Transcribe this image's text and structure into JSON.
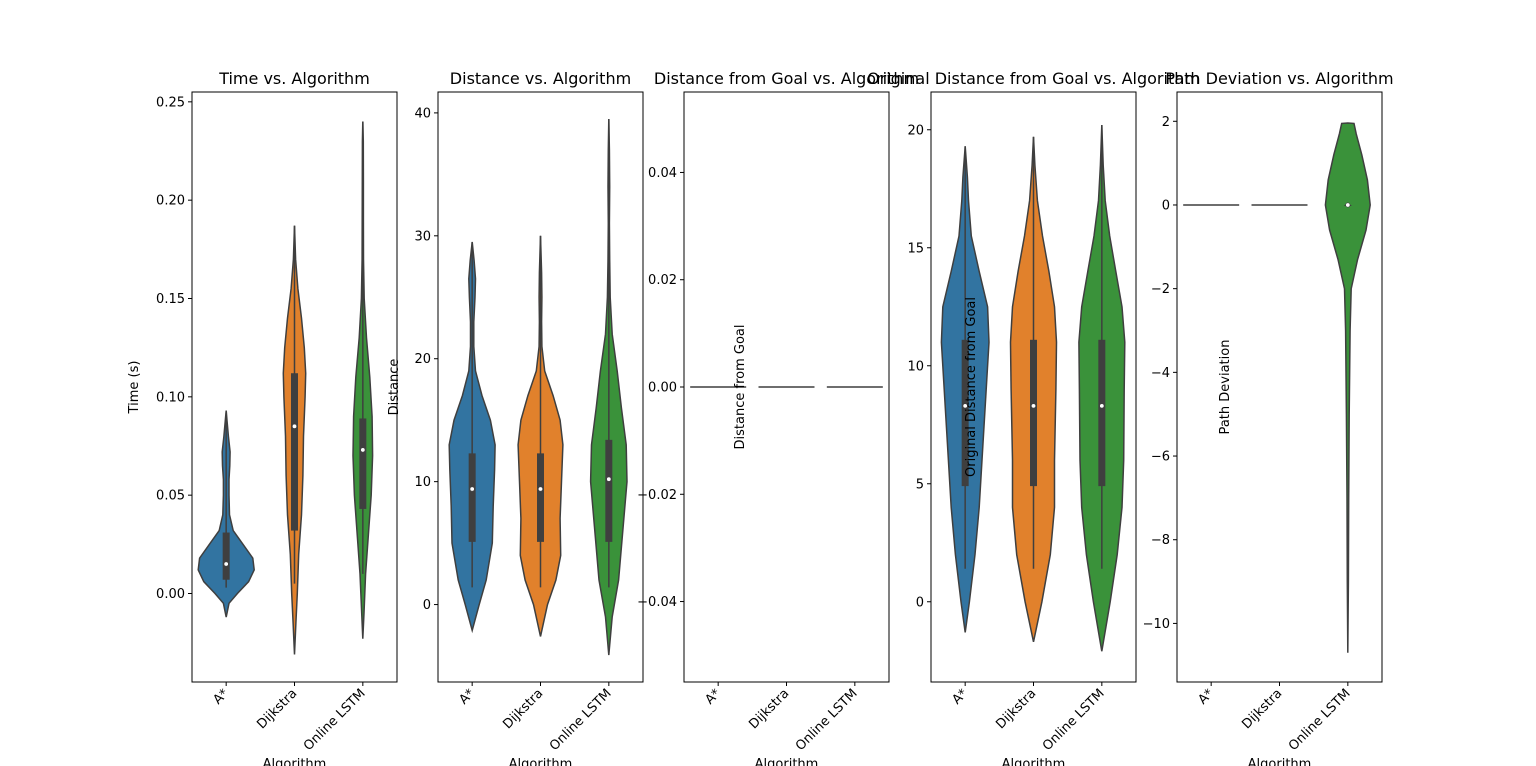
{
  "chart_data": [
    {
      "type": "violin",
      "title": "Time vs. Algorithm",
      "xlabel": "Algorithm",
      "ylabel": "Time (s)",
      "categories": [
        "A*",
        "Dijkstra",
        "Online LSTM"
      ],
      "colors": [
        "#3274a1",
        "#e1812c",
        "#3a923a"
      ],
      "ylim": [
        -0.045,
        0.255
      ],
      "yticks": [
        0.0,
        0.05,
        0.1,
        0.15,
        0.2,
        0.25
      ],
      "ytick_labels": [
        "0.00",
        "0.05",
        "0.10",
        "0.15",
        "0.20",
        "0.25"
      ],
      "violins": [
        {
          "name": "A*",
          "min": 0.003,
          "q1": 0.007,
          "median": 0.015,
          "q3": 0.031,
          "max": 0.092,
          "profile": [
            [
              -0.012,
              0
            ],
            [
              -0.005,
              0.1
            ],
            [
              0.0,
              0.4
            ],
            [
              0.006,
              0.8
            ],
            [
              0.012,
              1.0
            ],
            [
              0.018,
              0.95
            ],
            [
              0.025,
              0.6
            ],
            [
              0.032,
              0.25
            ],
            [
              0.04,
              0.12
            ],
            [
              0.05,
              0.1
            ],
            [
              0.058,
              0.1
            ],
            [
              0.065,
              0.13
            ],
            [
              0.072,
              0.14
            ],
            [
              0.08,
              0.08
            ],
            [
              0.088,
              0.03
            ],
            [
              0.093,
              0
            ]
          ]
        },
        {
          "name": "Dijkstra",
          "min": 0.005,
          "q1": 0.032,
          "median": 0.085,
          "q3": 0.112,
          "max": 0.187,
          "profile": [
            [
              -0.031,
              0
            ],
            [
              -0.015,
              0.05
            ],
            [
              0.0,
              0.1
            ],
            [
              0.02,
              0.15
            ],
            [
              0.04,
              0.25
            ],
            [
              0.06,
              0.3
            ],
            [
              0.08,
              0.32
            ],
            [
              0.1,
              0.38
            ],
            [
              0.112,
              0.4
            ],
            [
              0.125,
              0.35
            ],
            [
              0.14,
              0.25
            ],
            [
              0.155,
              0.12
            ],
            [
              0.17,
              0.04
            ],
            [
              0.187,
              0
            ]
          ]
        },
        {
          "name": "Online LSTM",
          "min": 0.01,
          "q1": 0.043,
          "median": 0.073,
          "q3": 0.089,
          "max": 0.24,
          "profile": [
            [
              -0.023,
              0
            ],
            [
              -0.01,
              0.04
            ],
            [
              0.01,
              0.1
            ],
            [
              0.03,
              0.2
            ],
            [
              0.05,
              0.3
            ],
            [
              0.07,
              0.35
            ],
            [
              0.09,
              0.33
            ],
            [
              0.11,
              0.25
            ],
            [
              0.13,
              0.13
            ],
            [
              0.15,
              0.05
            ],
            [
              0.17,
              0.025
            ],
            [
              0.19,
              0.022
            ],
            [
              0.21,
              0.02
            ],
            [
              0.23,
              0.015
            ],
            [
              0.24,
              0
            ]
          ]
        }
      ]
    },
    {
      "type": "violin",
      "title": "Distance vs. Algorithm",
      "xlabel": "Algorithm",
      "ylabel": "Distance",
      "categories": [
        "A*",
        "Dijkstra",
        "Online LSTM"
      ],
      "colors": [
        "#3274a1",
        "#e1812c",
        "#3a923a"
      ],
      "ylim": [
        -6.3,
        41.7
      ],
      "yticks": [
        0,
        10,
        20,
        30,
        40
      ],
      "ytick_labels": [
        "0",
        "10",
        "20",
        "30",
        "40"
      ],
      "violins": [
        {
          "name": "A*",
          "min": 1.4,
          "q1": 5.1,
          "median": 9.4,
          "q3": 12.3,
          "max": 29.5,
          "profile": [
            [
              -2.1,
              0
            ],
            [
              0,
              0.25
            ],
            [
              2,
              0.5
            ],
            [
              5,
              0.72
            ],
            [
              8,
              0.75
            ],
            [
              11,
              0.8
            ],
            [
              13,
              0.82
            ],
            [
              15,
              0.65
            ],
            [
              17,
              0.35
            ],
            [
              19,
              0.12
            ],
            [
              21,
              0.06
            ],
            [
              23,
              0.06
            ],
            [
              25,
              0.1
            ],
            [
              26.5,
              0.12
            ],
            [
              28,
              0.07
            ],
            [
              29.5,
              0
            ]
          ]
        },
        {
          "name": "Dijkstra",
          "min": 1.4,
          "q1": 5.1,
          "median": 9.4,
          "q3": 12.3,
          "max": 30.0,
          "profile": [
            [
              -2.6,
              0
            ],
            [
              0,
              0.25
            ],
            [
              2,
              0.55
            ],
            [
              4,
              0.72
            ],
            [
              7,
              0.7
            ],
            [
              10,
              0.75
            ],
            [
              13,
              0.8
            ],
            [
              15,
              0.7
            ],
            [
              17,
              0.45
            ],
            [
              19,
              0.15
            ],
            [
              21,
              0.05
            ],
            [
              23,
              0.04
            ],
            [
              25,
              0.05
            ],
            [
              27,
              0.04
            ],
            [
              30,
              0
            ]
          ]
        },
        {
          "name": "Online LSTM",
          "min": 1.4,
          "q1": 5.1,
          "median": 10.2,
          "q3": 13.4,
          "max": 39.5,
          "profile": [
            [
              -4.1,
              0
            ],
            [
              -1,
              0.12
            ],
            [
              2,
              0.35
            ],
            [
              6,
              0.5
            ],
            [
              10,
              0.65
            ],
            [
              13,
              0.62
            ],
            [
              16,
              0.45
            ],
            [
              19,
              0.3
            ],
            [
              22,
              0.12
            ],
            [
              25,
              0.05
            ],
            [
              28,
              0.03
            ],
            [
              31,
              0.02
            ],
            [
              34,
              0.03
            ],
            [
              37,
              0.02
            ],
            [
              39.5,
              0
            ]
          ]
        }
      ]
    },
    {
      "type": "violin",
      "title": "Distance from Goal vs. Algorithm",
      "xlabel": "Algorithm",
      "ylabel": "Distance from Goal",
      "categories": [
        "A*",
        "Dijkstra",
        "Online LSTM"
      ],
      "colors": [
        "#3274a1",
        "#e1812c",
        "#3a923a"
      ],
      "ylim": [
        -0.055,
        0.055
      ],
      "yticks": [
        -0.04,
        -0.02,
        0.0,
        0.02,
        0.04
      ],
      "ytick_labels": [
        "−0.04",
        "−0.02",
        "0.00",
        "0.02",
        "0.04"
      ],
      "constant": [
        0,
        0,
        0
      ]
    },
    {
      "type": "violin",
      "title": "Original Distance from Goal vs. Algorithm",
      "xlabel": "Algorithm",
      "ylabel": "Original Distance from Goal",
      "categories": [
        "A*",
        "Dijkstra",
        "Online LSTM"
      ],
      "colors": [
        "#3274a1",
        "#e1812c",
        "#3a923a"
      ],
      "ylim": [
        -3.4,
        21.6
      ],
      "yticks": [
        0,
        5,
        10,
        15,
        20
      ],
      "ytick_labels": [
        "0",
        "5",
        "10",
        "15",
        "20"
      ],
      "violins": [
        {
          "name": "A*",
          "min": 1.4,
          "q1": 4.9,
          "median": 8.3,
          "q3": 11.1,
          "max": 19.3,
          "profile": [
            [
              -1.3,
              0
            ],
            [
              0,
              0.15
            ],
            [
              2,
              0.35
            ],
            [
              4,
              0.5
            ],
            [
              6,
              0.6
            ],
            [
              9,
              0.75
            ],
            [
              11,
              0.85
            ],
            [
              12.5,
              0.8
            ],
            [
              14,
              0.5
            ],
            [
              15.5,
              0.22
            ],
            [
              17,
              0.12
            ],
            [
              18,
              0.08
            ],
            [
              19.3,
              0
            ]
          ]
        },
        {
          "name": "Dijkstra",
          "min": 1.4,
          "q1": 4.9,
          "median": 8.3,
          "q3": 11.1,
          "max": 19.7,
          "profile": [
            [
              -1.7,
              0
            ],
            [
              0,
              0.3
            ],
            [
              2,
              0.6
            ],
            [
              4,
              0.75
            ],
            [
              6,
              0.75
            ],
            [
              9,
              0.8
            ],
            [
              11,
              0.82
            ],
            [
              12.5,
              0.75
            ],
            [
              14,
              0.55
            ],
            [
              15.5,
              0.32
            ],
            [
              17,
              0.14
            ],
            [
              18.5,
              0.05
            ],
            [
              19.7,
              0
            ]
          ]
        },
        {
          "name": "Online LSTM",
          "min": 1.4,
          "q1": 4.9,
          "median": 8.3,
          "q3": 11.1,
          "max": 20.2,
          "profile": [
            [
              -2.1,
              0
            ],
            [
              0,
              0.3
            ],
            [
              2,
              0.55
            ],
            [
              4,
              0.72
            ],
            [
              6,
              0.78
            ],
            [
              9,
              0.8
            ],
            [
              11,
              0.82
            ],
            [
              12.5,
              0.72
            ],
            [
              14,
              0.5
            ],
            [
              15.5,
              0.28
            ],
            [
              17,
              0.12
            ],
            [
              18.5,
              0.05
            ],
            [
              20.2,
              0
            ]
          ]
        }
      ]
    },
    {
      "type": "violin",
      "title": "Path Deviation vs. Algorithm",
      "xlabel": "Algorithm",
      "ylabel": "Path Deviation",
      "categories": [
        "A*",
        "Dijkstra",
        "Online LSTM"
      ],
      "colors": [
        "#3274a1",
        "#e1812c",
        "#3a923a"
      ],
      "ylim": [
        -11.4,
        2.7
      ],
      "yticks": [
        -10,
        -8,
        -6,
        -4,
        -2,
        0,
        2
      ],
      "ytick_labels": [
        "−10",
        "−8",
        "−6",
        "−4",
        "−2",
        "0",
        "2"
      ],
      "constant": [
        0,
        0,
        null
      ],
      "violins": [
        null,
        null,
        {
          "name": "Online LSTM",
          "min": 0,
          "q1": 0,
          "median": 0,
          "q3": 0,
          "max": 0,
          "profile": [
            [
              -10.7,
              0
            ],
            [
              -9,
              0.02
            ],
            [
              -7,
              0.03
            ],
            [
              -5,
              0.05
            ],
            [
              -3,
              0.08
            ],
            [
              -2,
              0.12
            ],
            [
              -1.3,
              0.35
            ],
            [
              -0.6,
              0.65
            ],
            [
              0,
              0.8
            ],
            [
              0.6,
              0.7
            ],
            [
              1.2,
              0.5
            ],
            [
              1.7,
              0.3
            ],
            [
              1.95,
              0.22
            ],
            [
              1.96,
              0
            ]
          ]
        }
      ]
    }
  ]
}
